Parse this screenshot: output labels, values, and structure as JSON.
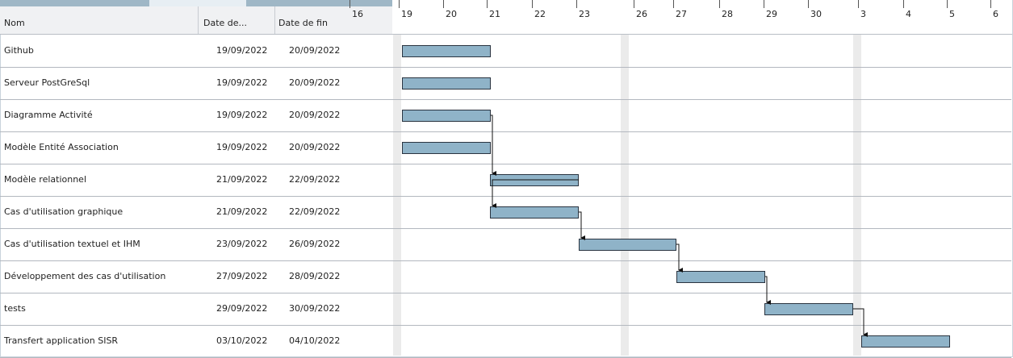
{
  "columns": {
    "name": "Nom",
    "start": "Date de...",
    "end": "Date de fin"
  },
  "timeline": {
    "labels": [
      "16",
      "19",
      "20",
      "21",
      "22",
      "23",
      "26",
      "27",
      "28",
      "29",
      "30",
      "3",
      "4",
      "5",
      "6"
    ]
  },
  "tasks": [
    {
      "name": "Github",
      "start": "19/09/2022",
      "end": "20/09/2022"
    },
    {
      "name": "Serveur PostGreSql",
      "start": "19/09/2022",
      "end": "20/09/2022"
    },
    {
      "name": "Diagramme Activité",
      "start": "19/09/2022",
      "end": "20/09/2022"
    },
    {
      "name": "Modèle Entité Association",
      "start": "19/09/2022",
      "end": "20/09/2022"
    },
    {
      "name": "Modèle relationnel",
      "start": "21/09/2022",
      "end": "22/09/2022"
    },
    {
      "name": "Cas d'utilisation graphique",
      "start": "21/09/2022",
      "end": "22/09/2022"
    },
    {
      "name": "Cas d'utilisation textuel et IHM",
      "start": "23/09/2022",
      "end": "26/09/2022"
    },
    {
      "name": "Développement des cas d'utilisation",
      "start": "27/09/2022",
      "end": "28/09/2022"
    },
    {
      "name": "tests",
      "start": "29/09/2022",
      "end": "30/09/2022"
    },
    {
      "name": "Transfert application SISR",
      "start": "03/10/2022",
      "end": "04/10/2022"
    }
  ],
  "colors": {
    "bar": "#8fb3c8",
    "bar_border": "#2a3440",
    "weekend": "#ebebeb",
    "grid": "#b3b8bf"
  }
}
